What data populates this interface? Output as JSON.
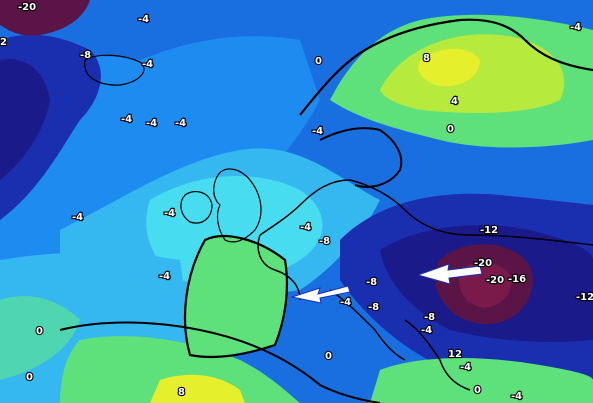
{
  "map": {
    "type": "temperature-anomaly-map",
    "region": "Europe",
    "colors": {
      "deep_purple": "#5a1445",
      "purple_core": "#7a1a4a",
      "dark_navy": "#1a1a8a",
      "navy": "#1a2fb0",
      "blue": "#1a6fe0",
      "mid_blue": "#1e8bf0",
      "light_blue": "#35b8f0",
      "cyan": "#48dcf0",
      "teal_green": "#4fd6b0",
      "green": "#5ee07a",
      "yellow_green": "#b6ea3c",
      "yellow": "#e6ef2c",
      "coast": "#000000",
      "arrow": "#ffffff"
    },
    "labels": [
      {
        "text": "-20"
      },
      {
        "text": "2"
      },
      {
        "text": "-4"
      },
      {
        "text": "-8"
      },
      {
        "text": "-4"
      },
      {
        "text": "0"
      },
      {
        "text": "8"
      },
      {
        "text": "4"
      },
      {
        "text": "-4"
      },
      {
        "text": "-4"
      },
      {
        "text": "-4"
      },
      {
        "text": "-4"
      },
      {
        "text": "0"
      },
      {
        "text": "-4"
      },
      {
        "text": "-4"
      },
      {
        "text": "-4"
      },
      {
        "text": "-8"
      },
      {
        "text": "-12"
      },
      {
        "text": "-4"
      },
      {
        "text": "-8"
      },
      {
        "text": "-20"
      },
      {
        "text": "-20"
      },
      {
        "text": "-16"
      },
      {
        "text": "-12"
      },
      {
        "text": "-4"
      },
      {
        "text": "-8"
      },
      {
        "text": "-8"
      },
      {
        "text": "-4"
      },
      {
        "text": "0"
      },
      {
        "text": "0"
      },
      {
        "text": "0"
      },
      {
        "text": "12"
      },
      {
        "text": "-4"
      },
      {
        "text": "8"
      },
      {
        "text": "-4"
      },
      {
        "text": "0"
      },
      {
        "text": "-4"
      }
    ]
  }
}
